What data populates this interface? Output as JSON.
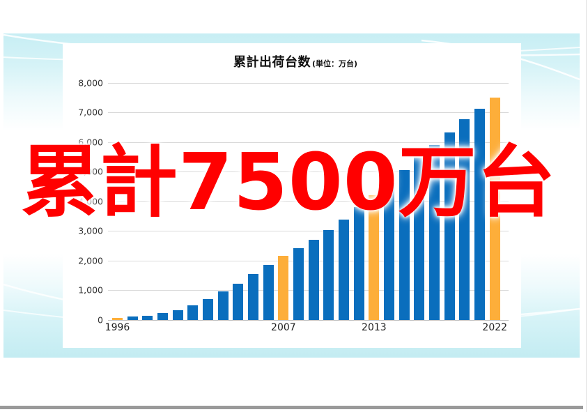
{
  "chart_title": {
    "main": "累計出荷台数",
    "unit": "(単位：万台)"
  },
  "overlay": {
    "text": "累計7500万台",
    "color": "#ff0000"
  },
  "colors": {
    "background_band_top": "#c7eef4",
    "background_band_bottom": "#c3ecf2",
    "bar": "#0a6ebd",
    "highlight_bar": "#fdae3a",
    "gridline": "#d9d9d9",
    "bottom_bar": "#9a9a9a"
  },
  "chart_data": {
    "type": "bar",
    "title": "累計出荷台数",
    "subtitle": "(単位：万台)",
    "xlabel": "",
    "ylabel": "",
    "ylim": [
      0,
      8000
    ],
    "grid": true,
    "legend": null,
    "yticks": [
      {
        "value": 0,
        "label": "0"
      },
      {
        "value": 1000,
        "label": "1,000"
      },
      {
        "value": 2000,
        "label": "2,000"
      },
      {
        "value": 3000,
        "label": "3,000"
      },
      {
        "value": 4000,
        "label": "4,000"
      },
      {
        "value": 5000,
        "label": "5,000"
      },
      {
        "value": 6000,
        "label": "6,000"
      },
      {
        "value": 7000,
        "label": "7,000"
      },
      {
        "value": 8000,
        "label": "8,000"
      }
    ],
    "categories": [
      "1996",
      "",
      "",
      "",
      "",
      "",
      "",
      "",
      "",
      "",
      "",
      "2007",
      "",
      "",
      "",
      "",
      "",
      "2013",
      "",
      "",
      "",
      "",
      "",
      "",
      "",
      "2022"
    ],
    "values": [
      55,
      95,
      140,
      225,
      315,
      480,
      700,
      960,
      1220,
      1540,
      1850,
      2150,
      2410,
      2710,
      3040,
      3390,
      3800,
      4200,
      4620,
      5060,
      5480,
      5900,
      6330,
      6770,
      7130,
      7500
    ],
    "highlight_indices": [
      0,
      11,
      17,
      25
    ],
    "annotation": "累計7500万台"
  }
}
